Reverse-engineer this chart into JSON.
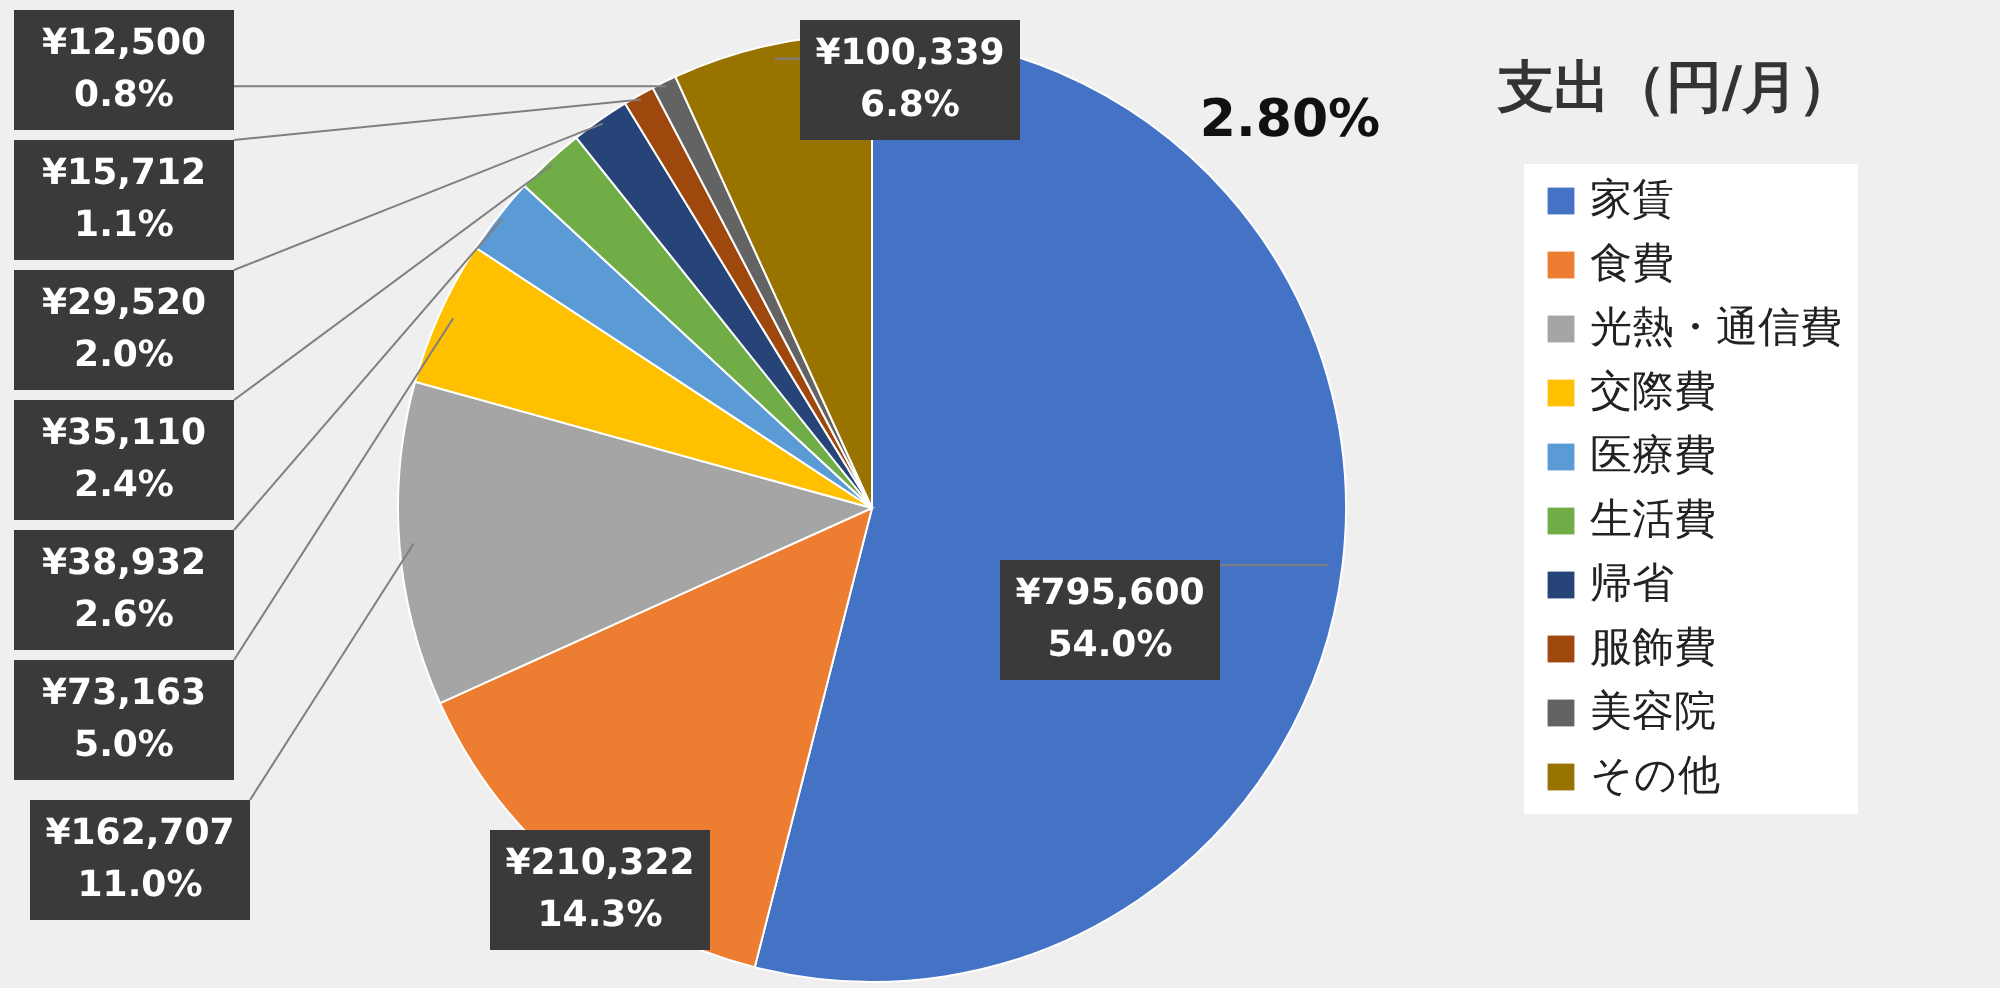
{
  "chart_data": {
    "type": "pie",
    "title": "支出（円/月）",
    "categories": [
      "家賃",
      "食費",
      "光熱・通信費",
      "交際費",
      "医療費",
      "生活費",
      "帰省",
      "服飾費",
      "美容院",
      "その他"
    ],
    "values": [
      795600,
      210322,
      162707,
      73163,
      38932,
      35110,
      29520,
      15712,
      12500,
      100339
    ],
    "colors": [
      "#4472c4",
      "#ed7d31",
      "#a5a5a5",
      "#ffc000",
      "#5b9bd5",
      "#70ad47",
      "#264478",
      "#9e480e",
      "#636363",
      "#997300"
    ],
    "value_labels": [
      "¥795,600\n54.0%",
      "¥210,322\n14.3%",
      "¥162,707\n11.0%",
      "¥73,163\n5.0%",
      "¥38,932\n2.6%",
      "¥35,110\n2.4%",
      "¥29,520\n2.0%",
      "¥15,712\n1.1%",
      "¥12,500\n0.8%",
      "¥100,339\n6.8%"
    ],
    "annotations": [
      "2.80%"
    ],
    "legend": "right"
  }
}
